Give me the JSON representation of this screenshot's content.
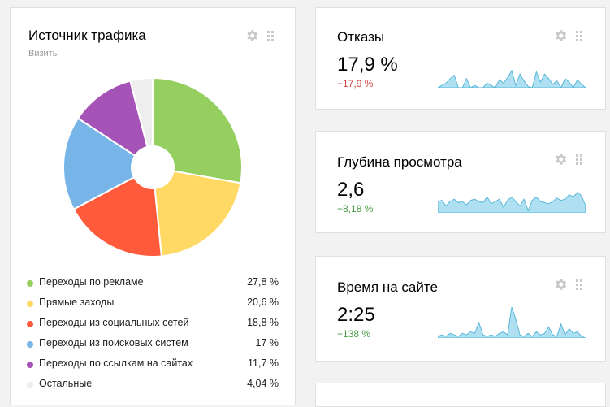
{
  "traffic": {
    "title": "Источник трафика",
    "subtitle": "Визиты",
    "legend": [
      {
        "label": "Переходы по рекламе",
        "value": "27,8 %",
        "color": "#95cf5f"
      },
      {
        "label": "Прямые заходы",
        "value": "20,6 %",
        "color": "#ffd964"
      },
      {
        "label": "Переходы из социальных сетей",
        "value": "18,8 %",
        "color": "#ff5a3c"
      },
      {
        "label": "Переходы из поисковых систем",
        "value": "17 %",
        "color": "#77b4e8"
      },
      {
        "label": "Переходы по ссылкам на сайтах",
        "value": "11,7 %",
        "color": "#a653b7"
      },
      {
        "label": "Остальные",
        "value": "4,04 %",
        "color": "#eeeeee"
      }
    ]
  },
  "chart_data": {
    "type": "pie",
    "categories": [
      "Переходы по рекламе",
      "Прямые заходы",
      "Переходы из социальных сетей",
      "Переходы из поисковых систем",
      "Переходы по ссылкам на сайтах",
      "Остальные"
    ],
    "values": [
      27.8,
      20.6,
      18.8,
      17,
      11.7,
      4.04
    ],
    "title": "Источник трафика"
  },
  "metrics": {
    "bounce": {
      "title": "Отказы",
      "value": "17,9 %",
      "delta": "+17,9 %",
      "delta_color": "#d0473e",
      "spark": [
        0,
        0.1,
        0.2,
        0.4,
        0.55,
        0,
        0,
        0.4,
        0,
        0.1,
        0,
        0,
        0.2,
        0.1,
        0,
        0.35,
        0.2,
        0.45,
        0.75,
        0.1,
        0.6,
        0.3,
        0.05,
        0,
        0.7,
        0.25,
        0.6,
        0.4,
        0.15,
        0.3,
        0,
        0.4,
        0.25,
        0,
        0.35,
        0.15,
        0
      ]
    },
    "depth": {
      "title": "Глубина просмотра",
      "value": "2,6",
      "delta": "+8,18 %",
      "delta_color": "#4a9e48",
      "spark": [
        0.5,
        0.55,
        0.3,
        0.5,
        0.6,
        0.45,
        0.5,
        0.35,
        0.55,
        0.6,
        0.5,
        0.45,
        0.7,
        0.4,
        0.5,
        0.6,
        0.25,
        0.55,
        0.7,
        0.5,
        0.3,
        0.6,
        0.1,
        0.55,
        0.7,
        0.5,
        0.45,
        0.4,
        0.5,
        0.65,
        0.55,
        0.6,
        0.8,
        0.7,
        0.9,
        0.75,
        0.3
      ]
    },
    "time": {
      "title": "Время на сайте",
      "value": "2:25",
      "delta": "+138 %",
      "delta_color": "#4a9e48",
      "spark": [
        0.05,
        0.1,
        0.05,
        0.15,
        0.1,
        0.05,
        0.15,
        0.1,
        0.2,
        0.15,
        0.5,
        0.1,
        0.05,
        0.1,
        0.05,
        0.15,
        0.2,
        0.1,
        1.0,
        0.6,
        0.1,
        0.05,
        0.15,
        0.05,
        0.2,
        0.1,
        0.15,
        0.35,
        0.1,
        0.05,
        0.45,
        0.1,
        0.3,
        0.15,
        0.2,
        0.05,
        0
      ]
    }
  },
  "icons": {
    "settings": "gear-icon",
    "drag": "drag-handle-icon"
  }
}
